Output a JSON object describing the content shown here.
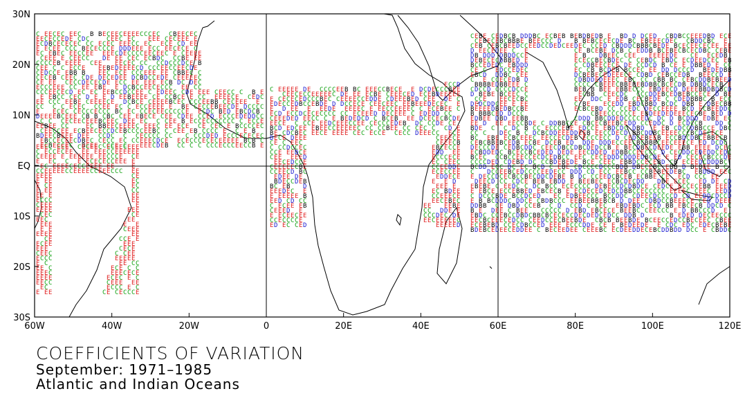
{
  "title": "COEFFICIENTS OF VARIATION",
  "subtitle_period": "September: 1971–1985",
  "subtitle_region": "Atlantic and Indian Oceans",
  "map": {
    "lon_range": [
      -60,
      120
    ],
    "lat_range": [
      -30,
      30
    ],
    "x_ticks": [
      "60W",
      "40W",
      "20W",
      "0",
      "20E",
      "40E",
      "60E",
      "80E",
      "100E",
      "120E"
    ],
    "y_ticks": [
      "30N",
      "20N",
      "10N",
      "EQ",
      "10S",
      "20S",
      "30S"
    ],
    "gridlines": [
      "lon 0",
      "lon 60E",
      "lat EQ"
    ]
  },
  "legend_classes": {
    "E": {
      "color": "#e02020"
    },
    "C": {
      "color": "#10a010"
    },
    "D": {
      "color": "#1a1ad0"
    },
    "B": {
      "color": "#000000"
    }
  }
}
